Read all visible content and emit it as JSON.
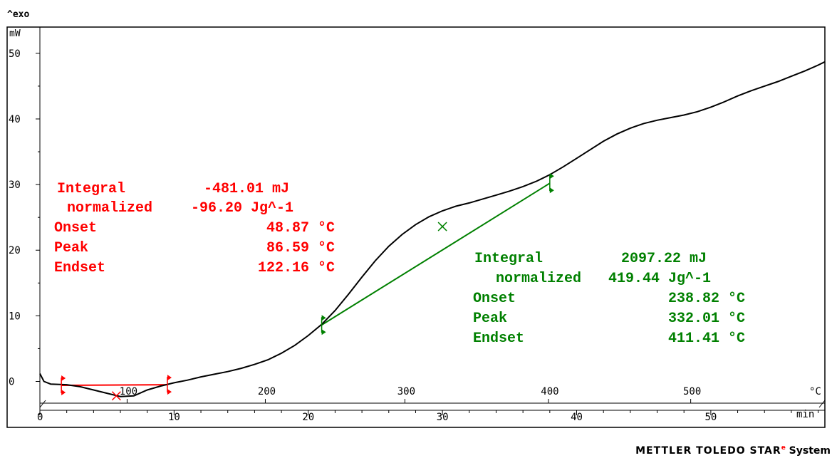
{
  "header": {
    "exo_label": "^exo",
    "y_unit": "mW"
  },
  "chart_data": {
    "type": "line",
    "xlabel": "min",
    "temp_unit": "°C",
    "xlim": [
      0,
      58.5
    ],
    "ylim": [
      -7,
      54
    ],
    "x_ticks": [
      0,
      10,
      20,
      30,
      40,
      50
    ],
    "y_ticks": [
      0,
      10,
      20,
      30,
      40,
      50
    ],
    "temp_ticks": [
      100,
      200,
      300,
      400,
      500
    ],
    "temp_ticks_time": [
      6.5,
      16.8,
      27.2,
      37.9,
      48.5
    ],
    "series": [
      {
        "points": [
          [
            0,
            1.2
          ],
          [
            0.3,
            0.0
          ],
          [
            0.8,
            -0.4
          ],
          [
            2,
            -0.5
          ],
          [
            3,
            -0.8
          ],
          [
            4,
            -1.3
          ],
          [
            5,
            -1.8
          ],
          [
            6,
            -2.3
          ],
          [
            7,
            -2.2
          ],
          [
            8,
            -1.3
          ],
          [
            9,
            -0.7
          ],
          [
            10,
            -0.2
          ],
          [
            11,
            0.2
          ],
          [
            12,
            0.7
          ],
          [
            13,
            1.1
          ],
          [
            14,
            1.5
          ],
          [
            15,
            2.0
          ],
          [
            16,
            2.6
          ],
          [
            17,
            3.3
          ],
          [
            18,
            4.3
          ],
          [
            19,
            5.5
          ],
          [
            20,
            7.0
          ],
          [
            21,
            8.7
          ],
          [
            22,
            10.8
          ],
          [
            23,
            13.3
          ],
          [
            24,
            15.9
          ],
          [
            25,
            18.4
          ],
          [
            26,
            20.6
          ],
          [
            27,
            22.4
          ],
          [
            28,
            23.9
          ],
          [
            29,
            25.1
          ],
          [
            30,
            26.0
          ],
          [
            31,
            26.7
          ],
          [
            32,
            27.2
          ],
          [
            33,
            27.8
          ],
          [
            34,
            28.4
          ],
          [
            35,
            29.0
          ],
          [
            36,
            29.7
          ],
          [
            37,
            30.5
          ],
          [
            38,
            31.5
          ],
          [
            39,
            32.7
          ],
          [
            40,
            34.0
          ],
          [
            41,
            35.3
          ],
          [
            42,
            36.6
          ],
          [
            43,
            37.7
          ],
          [
            44,
            38.6
          ],
          [
            45,
            39.3
          ],
          [
            46,
            39.8
          ],
          [
            47,
            40.2
          ],
          [
            48,
            40.6
          ],
          [
            49,
            41.1
          ],
          [
            50,
            41.8
          ],
          [
            51,
            42.6
          ],
          [
            52,
            43.5
          ],
          [
            53,
            44.3
          ],
          [
            54,
            45.0
          ],
          [
            55,
            45.7
          ],
          [
            56,
            46.5
          ],
          [
            57,
            47.3
          ],
          [
            58,
            48.2
          ],
          [
            58.5,
            48.7
          ]
        ]
      }
    ],
    "evaluations": [
      {
        "color": "#ff0000",
        "baseline": [
          [
            1.6,
            -0.6
          ],
          [
            9.5,
            -0.5
          ]
        ],
        "limits": [
          [
            1.6,
            -0.6
          ],
          [
            9.5,
            -0.5
          ]
        ],
        "peak": [
          5.7,
          -2.2
        ],
        "labels": {
          "integral_label": "Integral",
          "integral_value": "-481.01 mJ",
          "normalized_label": "normalized",
          "normalized_value": "-96.20 Jg^-1",
          "onset_label": "Onset",
          "onset_value": "48.87 °C",
          "peak_label": "Peak",
          "peak_value": "86.59 °C",
          "endset_label": "Endset",
          "endset_value": "122.16 °C"
        }
      },
      {
        "color": "#008000",
        "baseline": [
          [
            21,
            8.6
          ],
          [
            38,
            30.2
          ]
        ],
        "limits": [
          [
            21,
            8.6
          ],
          [
            38,
            30.2
          ]
        ],
        "peak": [
          30,
          23.6
        ],
        "labels": {
          "integral_label": "Integral",
          "integral_value": "2097.22 mJ",
          "normalized_label": "normalized",
          "normalized_value": "419.44 Jg^-1",
          "onset_label": "Onset",
          "onset_value": "238.82 °C",
          "peak_label": "Peak",
          "peak_value": "332.01 °C",
          "endset_label": "Endset",
          "endset_value": "411.41 °C"
        }
      }
    ]
  },
  "footer": {
    "brand": "METTLER TOLEDO STAR",
    "brand_sup": "e",
    "brand_suffix": " System"
  }
}
